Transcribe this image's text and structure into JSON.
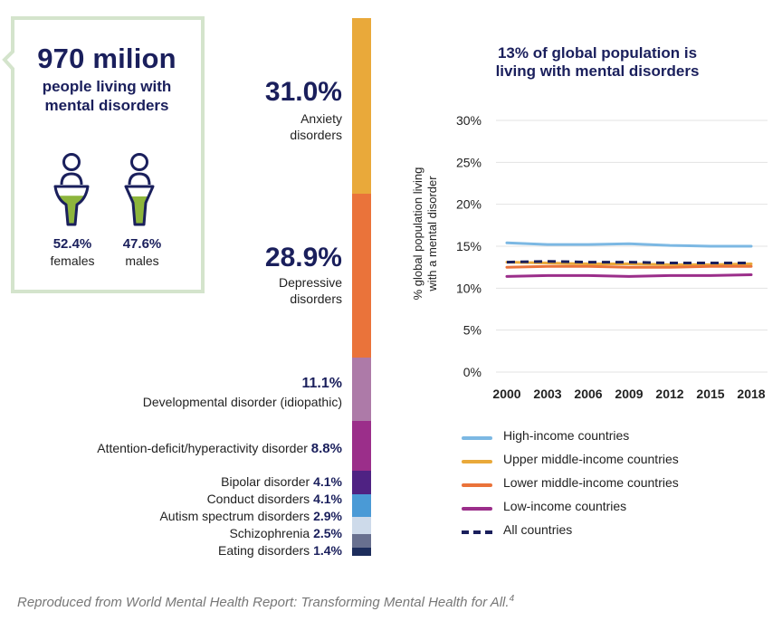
{
  "callout": {
    "headline": "970 milion",
    "subtitle_line1": "people living with",
    "subtitle_line2": "mental disorders",
    "female_pct": "52.4%",
    "female_label": "females",
    "male_pct": "47.6%",
    "male_label": "males",
    "female_fill_fraction": 0.524,
    "male_fill_fraction": 0.476,
    "border_color": "#d4e4cc",
    "fill_color": "#8db53c"
  },
  "disorders": {
    "type": "stacked-bar",
    "segments": [
      {
        "name": "Anxiety disorders",
        "value": 31.0,
        "pct": "31.0%",
        "label_line1": "Anxiety",
        "label_line2": "disorders",
        "color": "#e9a93a"
      },
      {
        "name": "Depressive disorders",
        "value": 28.9,
        "pct": "28.9%",
        "label_line1": "Depressive",
        "label_line2": "disorders",
        "color": "#ea733a"
      },
      {
        "name": "Developmental disorder (idiopathic)",
        "value": 11.1,
        "pct": "11.1%",
        "color": "#ad7aa8"
      },
      {
        "name": "Attention-deficit/hyperactivity disorder",
        "value": 8.8,
        "pct": "8.8%",
        "color": "#9b2e8a"
      },
      {
        "name": "Bipolar disorder",
        "value": 4.1,
        "pct": "4.1%",
        "color": "#4f2283"
      },
      {
        "name": "Conduct disorders",
        "value": 4.1,
        "pct": "4.1%",
        "color": "#4a9ad6"
      },
      {
        "name": "Autism spectrum disorders",
        "value": 2.9,
        "pct": "2.9%",
        "color": "#cddaea"
      },
      {
        "name": "Schizophrenia",
        "value": 2.5,
        "pct": "2.5%",
        "color": "#68708f"
      },
      {
        "name": "Eating disorders",
        "value": 1.4,
        "pct": "1.4%",
        "color": "#1d2d5c"
      }
    ]
  },
  "chart_data": {
    "type": "line",
    "title_line1": "13% of global population is",
    "title_line2": "living with mental disorders",
    "xlabel": "",
    "ylabel_line1": "% global population living",
    "ylabel_line2": "with a mental disorder",
    "x": [
      2000,
      2003,
      2006,
      2009,
      2012,
      2015,
      2018
    ],
    "x_tick_labels": [
      "2000",
      "2003",
      "2006",
      "2009",
      "2012",
      "2015",
      "2018"
    ],
    "ylim": [
      0,
      30
    ],
    "y_ticks": [
      0,
      5,
      10,
      15,
      20,
      25,
      30
    ],
    "y_tick_labels": [
      "0%",
      "5%",
      "10%",
      "15%",
      "20%",
      "25%",
      "30%"
    ],
    "grid": true,
    "series": [
      {
        "name": "High-income countries",
        "values": [
          15.4,
          15.2,
          15.2,
          15.3,
          15.1,
          15.0,
          15.0
        ],
        "color": "#7cb8e3",
        "dashed": false
      },
      {
        "name": "Upper middle-income countries",
        "values": [
          13.1,
          13.0,
          12.9,
          12.9,
          12.8,
          12.8,
          12.9
        ],
        "color": "#e9a93a",
        "dashed": false
      },
      {
        "name": "Lower middle-income countries",
        "values": [
          12.5,
          12.6,
          12.6,
          12.5,
          12.5,
          12.6,
          12.6
        ],
        "color": "#ea733a",
        "dashed": false
      },
      {
        "name": "Low-income countries",
        "values": [
          11.4,
          11.5,
          11.5,
          11.4,
          11.5,
          11.5,
          11.6
        ],
        "color": "#9b2e8a",
        "dashed": false
      },
      {
        "name": "All countries",
        "values": [
          13.1,
          13.2,
          13.1,
          13.1,
          13.0,
          13.0,
          13.0
        ],
        "color": "#1a1f5c",
        "dashed": true
      }
    ]
  },
  "caption": {
    "text": "Reproduced from World Mental Health Report: Transforming Mental Health for All.",
    "ref": "4"
  }
}
